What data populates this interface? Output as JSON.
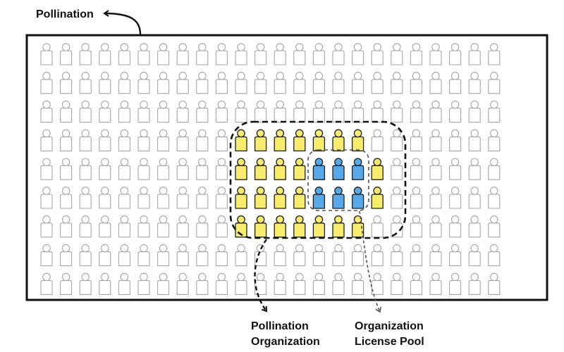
{
  "labels": {
    "outer": "Pollination",
    "organization_line1": "Pollination",
    "organization_line2": "Organization",
    "pool_line1": "Organization",
    "pool_line2": "License Pool"
  },
  "grid": {
    "rows": 9,
    "cols": 24
  },
  "organization": {
    "rows": [
      {
        "row": 3,
        "cols": [
          0,
          1,
          2,
          3,
          4,
          5,
          6
        ]
      },
      {
        "row": 4,
        "cols": [
          0,
          1,
          2,
          3,
          4,
          5,
          6,
          7
        ]
      },
      {
        "row": 5,
        "cols": [
          0,
          1,
          2,
          3,
          4,
          5,
          6,
          7
        ]
      },
      {
        "row": 6,
        "cols": [
          0,
          1,
          2,
          3,
          4,
          5,
          6
        ]
      }
    ],
    "license_pool": [
      {
        "row": 4,
        "cols": [
          4,
          5,
          6
        ]
      },
      {
        "row": 5,
        "cols": [
          4,
          5,
          6
        ]
      }
    ]
  },
  "colors": {
    "outer_user": "#a6a6a6",
    "org_member": "#f7ec6b",
    "pool_member": "#56a8e8",
    "frame": "#111111",
    "pool_boundary": "#555555"
  }
}
